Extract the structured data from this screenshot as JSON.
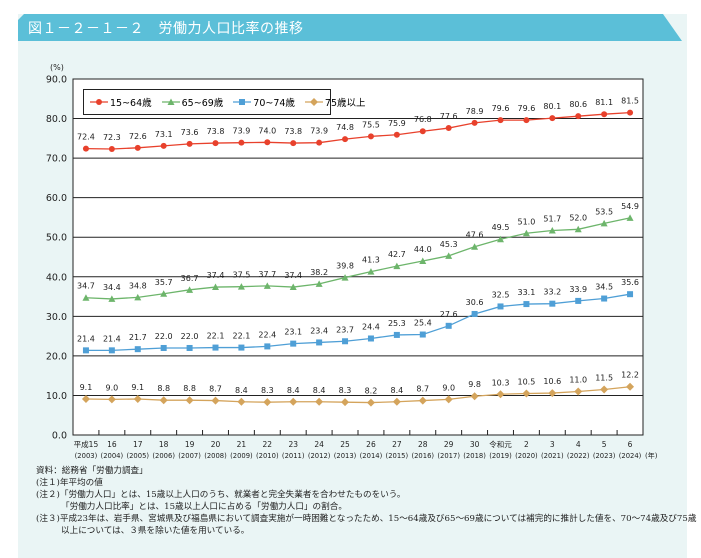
{
  "title": "図１－２－１－２　労働力人口比率の推移",
  "chart_data": {
    "type": "line",
    "ylabel": "(%)",
    "ylim": [
      0,
      90
    ],
    "yticks": [
      "0.0",
      "10.0",
      "20.0",
      "30.0",
      "40.0",
      "50.0",
      "60.0",
      "70.0",
      "80.0",
      "90.0"
    ],
    "grid": true,
    "legend_position": "top-left",
    "x_unit": "(年)",
    "categories": [
      {
        "era": "平成15",
        "year": "(2003)"
      },
      {
        "era": "16",
        "year": "(2004)"
      },
      {
        "era": "17",
        "year": "(2005)"
      },
      {
        "era": "18",
        "year": "(2006)"
      },
      {
        "era": "19",
        "year": "(2007)"
      },
      {
        "era": "20",
        "year": "(2008)"
      },
      {
        "era": "21",
        "year": "(2009)"
      },
      {
        "era": "22",
        "year": "(2010)"
      },
      {
        "era": "23",
        "year": "(2011)"
      },
      {
        "era": "24",
        "year": "(2012)"
      },
      {
        "era": "25",
        "year": "(2013)"
      },
      {
        "era": "26",
        "year": "(2014)"
      },
      {
        "era": "27",
        "year": "(2015)"
      },
      {
        "era": "28",
        "year": "(2016)"
      },
      {
        "era": "29",
        "year": "(2017)"
      },
      {
        "era": "30",
        "year": "(2018)"
      },
      {
        "era": "令和元",
        "year": "(2019)"
      },
      {
        "era": "2",
        "year": "(2020)"
      },
      {
        "era": "3",
        "year": "(2021)"
      },
      {
        "era": "4",
        "year": "(2022)"
      },
      {
        "era": "5",
        "year": "(2023)"
      },
      {
        "era": "6",
        "year": "(2024)"
      }
    ],
    "series": [
      {
        "name": "15~64歳",
        "color": "#e8412c",
        "marker": "circle",
        "values": [
          72.4,
          72.3,
          72.6,
          73.1,
          73.6,
          73.8,
          73.9,
          74.0,
          73.8,
          73.9,
          74.8,
          75.5,
          75.9,
          76.8,
          77.6,
          78.9,
          79.6,
          79.6,
          80.1,
          80.6,
          81.1,
          81.5
        ]
      },
      {
        "name": "65~69歳",
        "color": "#6db56b",
        "marker": "triangle",
        "values": [
          34.7,
          34.4,
          34.8,
          35.7,
          36.7,
          37.4,
          37.5,
          37.7,
          37.4,
          38.2,
          39.8,
          41.3,
          42.7,
          44.0,
          45.3,
          47.6,
          49.5,
          51.0,
          51.7,
          52.0,
          53.5,
          54.9
        ]
      },
      {
        "name": "70~74歳",
        "color": "#4f9fd6",
        "marker": "square",
        "values": [
          21.4,
          21.4,
          21.7,
          22.0,
          22.0,
          22.1,
          22.1,
          22.4,
          23.1,
          23.4,
          23.7,
          24.4,
          25.3,
          25.4,
          27.6,
          30.6,
          32.5,
          33.1,
          33.2,
          33.9,
          34.5,
          35.6
        ]
      },
      {
        "name": "75歳以上",
        "color": "#d4a45c",
        "marker": "diamond",
        "values": [
          9.1,
          9.0,
          9.1,
          8.8,
          8.8,
          8.7,
          8.4,
          8.3,
          8.4,
          8.4,
          8.3,
          8.2,
          8.4,
          8.7,
          9.0,
          9.8,
          10.3,
          10.5,
          10.6,
          11.0,
          11.5,
          12.2
        ]
      }
    ]
  },
  "notes": {
    "source": "資料：総務省「労働力調査」",
    "note1": "(注１)年平均の値",
    "note2a": "(注２)「労働力人口」とは、15歳以上人口のうち、就業者と完全失業者を合わせたものをいう。",
    "note2b": "「労働力人口比率」とは、15歳以上人口に占める「労働力人口」の割合。",
    "note3a": "(注３)平成23年は、岩手県、宮城県及び福島県において調査実施が一時困難となったため、15～64歳及び65～69歳については補完的に推計した値を、70～74歳及び75歳以上については、３県を除いた値を用いている。",
    "note3b": ""
  }
}
